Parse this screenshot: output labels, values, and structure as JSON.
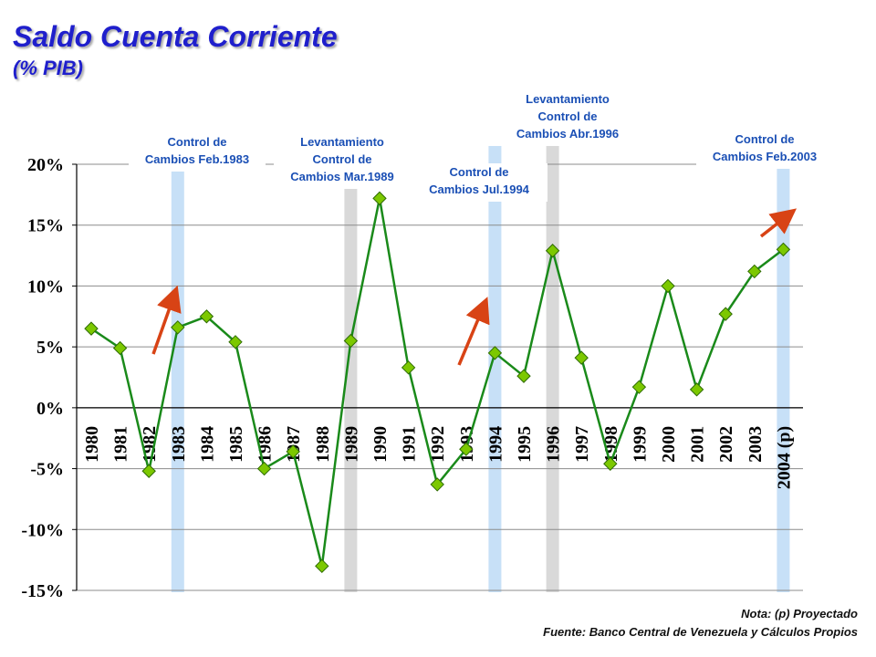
{
  "title": "Saldo Cuenta Corriente",
  "subtitle": "(% PIB)",
  "note": "Nota: (p) Proyectado",
  "source": "Fuente: Banco Central de Venezuela y Cálculos Propios",
  "colors": {
    "title": "#1f1fcc",
    "line": "#1a8a1a",
    "marker": "#7cc800",
    "highlight_blue": "#c7e0f7",
    "highlight_gray": "#d9d9d9",
    "arrow": "#d84315",
    "annotation": "#1a4fb5"
  },
  "chart_data": {
    "type": "line",
    "title": "Saldo Cuenta Corriente",
    "subtitle": "(% PIB)",
    "categories": [
      "1980",
      "1981",
      "1982",
      "1983",
      "1984",
      "1985",
      "1986",
      "1987",
      "1988",
      "1989",
      "1990",
      "1991",
      "1992",
      "1993",
      "1994",
      "1995",
      "1996",
      "1997",
      "1998",
      "1999",
      "2000",
      "2001",
      "2002",
      "2003",
      "2004 (p)"
    ],
    "series": [
      {
        "values": [
          6.5,
          4.9,
          -5.2,
          6.6,
          7.5,
          5.4,
          -5.0,
          -3.6,
          -13.0,
          5.5,
          17.2,
          3.3,
          -6.3,
          -3.4,
          4.5,
          2.6,
          12.9,
          4.1,
          -4.6,
          1.7,
          10.0,
          1.5,
          7.7,
          11.2,
          13.0
        ]
      }
    ],
    "yticks": [
      "20%",
      "15%",
      "10%",
      "5%",
      "0%",
      "-5%",
      "-10%",
      "-15%"
    ],
    "ytick_values": [
      20,
      15,
      10,
      5,
      0,
      -5,
      -10,
      -15
    ],
    "ylim": [
      -15,
      20
    ],
    "grid": true,
    "highlights": [
      {
        "year": "1983",
        "kind": "blue"
      },
      {
        "year": "1989",
        "kind": "gray"
      },
      {
        "year": "1994",
        "kind": "blue"
      },
      {
        "year": "1996",
        "kind": "gray"
      },
      {
        "year": "2004 (p)",
        "kind": "blue"
      }
    ],
    "annotations": [
      {
        "year": "1983",
        "lines": [
          "Control de",
          "Cambios Feb.1983"
        ]
      },
      {
        "year": "1989",
        "lines": [
          "Levantamiento",
          "Control de",
          "Cambios Mar.1989"
        ]
      },
      {
        "year": "1994",
        "lines": [
          "Control de",
          "Cambios Jul.1994"
        ]
      },
      {
        "year": "1996",
        "lines": [
          "Levantamiento",
          "Control de",
          "Cambios Abr.1996"
        ]
      },
      {
        "year": "2004 (p)",
        "lines": [
          "Control de",
          "Cambios Feb.2003"
        ]
      }
    ],
    "arrows": [
      "1983",
      "1994",
      "2004 (p)"
    ]
  }
}
